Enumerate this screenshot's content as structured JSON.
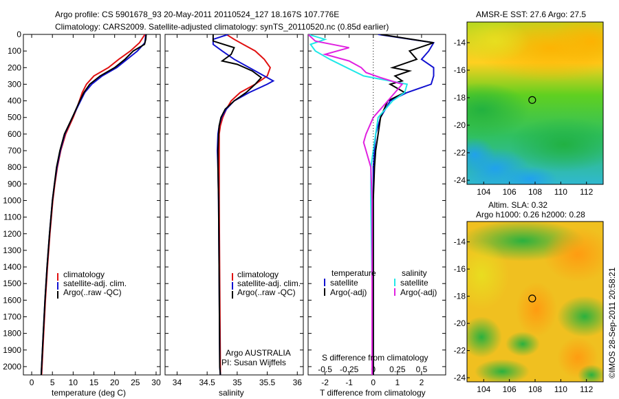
{
  "header": {
    "line1": "Argo profile: CS 5901678_93 20-May-2011 20110524_127 18.167S 107.776E",
    "line2": "Climatology: CARS2009. Satellite-adjusted climatology: synTS_20110520.nc (0.85d earlier)"
  },
  "colors": {
    "climatology": "#e01010",
    "satellite": "#1010d0",
    "argo": "#000000",
    "argo_salt": "#e020e0",
    "sat_salt": "#20e8e8"
  },
  "panels": {
    "temperature": {
      "xlabel": "temperature (deg C)",
      "legend": [
        "climatology",
        "satellite-adj. clim.",
        "Argo(..raw -QC)"
      ]
    },
    "salinity": {
      "xlabel": "salinity",
      "legend": [
        "climatology",
        "satellite-adj. clim.",
        "Argo(..raw -QC)"
      ],
      "note1": "Argo AUSTRALIA",
      "note2": "PI: Susan Wijffels"
    },
    "difference": {
      "legend_temp_title": "temperature",
      "legend_temp": [
        "satellite",
        "Argo(-adj)"
      ],
      "legend_salt_title": "salinity",
      "legend_salt": [
        "satellite",
        "Argo(-adj)"
      ],
      "top_label": "S difference from climatology",
      "xlabel": "T difference from climatology"
    }
  },
  "maps": {
    "sst_title": "AMSR-E SST: 27.6  Argo: 27.5",
    "sla_title1": "Altim. SLA: 0.32",
    "sla_title2": "Argo h1000: 0.26  h2000: 0.28",
    "sidebar": "©IMOS 28-Sep-2011 20:58:21",
    "argo_lon": 107.776,
    "argo_lat": -18.167
  },
  "chart_data": [
    {
      "type": "line",
      "title": "",
      "xlabel": "temperature (deg C)",
      "ylabel": "",
      "xlim": [
        -2,
        31
      ],
      "ylim": [
        2050,
        0
      ],
      "xticks": [
        0,
        5,
        10,
        15,
        20,
        25,
        30
      ],
      "yticks": [
        0,
        100,
        200,
        300,
        400,
        500,
        600,
        700,
        800,
        900,
        1000,
        1100,
        1200,
        1300,
        1400,
        1500,
        1600,
        1700,
        1800,
        1900,
        2000
      ],
      "series": [
        {
          "name": "climatology",
          "color_key": "climatology",
          "depth": [
            0,
            50,
            100,
            150,
            200,
            250,
            300,
            350,
            400,
            450,
            500,
            600,
            700,
            800,
            900,
            1000,
            1200,
            1400,
            1600,
            1800,
            2000,
            2050
          ],
          "x": [
            27.3,
            26.0,
            23.8,
            21.0,
            18.5,
            15.0,
            13.2,
            12.2,
            11.5,
            10.8,
            10.0,
            8.2,
            7.0,
            6.2,
            5.6,
            5.1,
            4.4,
            3.8,
            3.3,
            2.9,
            2.5,
            2.4
          ]
        },
        {
          "name": "satellite-adj. clim.",
          "color_key": "satellite",
          "depth": [
            0,
            50,
            100,
            150,
            200,
            250,
            300,
            350,
            400,
            450,
            500,
            600,
            700,
            800,
            900,
            1000,
            1200,
            1400,
            1600,
            1800,
            2000,
            2050
          ],
          "x": [
            27.5,
            27.3,
            25.5,
            23.0,
            20.5,
            17.0,
            14.5,
            12.8,
            11.8,
            10.8,
            9.8,
            8.0,
            6.9,
            6.1,
            5.5,
            5.0,
            4.3,
            3.7,
            3.2,
            2.8,
            2.4,
            2.3
          ]
        },
        {
          "name": "Argo(..raw -QC)",
          "color_key": "argo",
          "depth": [
            0,
            30,
            60,
            100,
            150,
            200,
            250,
            300,
            350,
            400,
            500,
            600,
            700,
            800,
            900,
            1000,
            1200,
            1400,
            1600,
            1800,
            2000,
            2050
          ],
          "x": [
            27.6,
            27.5,
            27.2,
            24.5,
            22.5,
            20.0,
            16.5,
            14.0,
            12.6,
            11.6,
            9.8,
            7.9,
            6.8,
            6.0,
            5.5,
            5.0,
            4.3,
            3.7,
            3.2,
            2.8,
            2.4,
            2.3
          ]
        }
      ]
    },
    {
      "type": "line",
      "title": "",
      "xlabel": "salinity",
      "ylabel": "",
      "xlim": [
        33.8,
        36.1
      ],
      "ylim": [
        2050,
        0
      ],
      "xticks": [
        34,
        34.5,
        35,
        35.5,
        36
      ],
      "series": [
        {
          "name": "climatology",
          "color_key": "climatology",
          "depth": [
            0,
            30,
            60,
            100,
            150,
            200,
            250,
            300,
            350,
            400,
            450,
            500,
            550,
            600,
            700,
            800,
            1000,
            1500,
            2000,
            2050
          ],
          "x": [
            34.82,
            34.95,
            35.1,
            35.3,
            35.45,
            35.55,
            35.5,
            35.3,
            35.05,
            34.9,
            34.82,
            34.76,
            34.72,
            34.7,
            34.7,
            34.7,
            34.7,
            34.71,
            34.72,
            34.72
          ]
        },
        {
          "name": "satellite-adj. clim.",
          "color_key": "satellite",
          "depth": [
            0,
            30,
            60,
            100,
            150,
            200,
            250,
            280,
            300,
            350,
            400,
            450,
            500,
            550,
            600,
            700,
            800,
            1000,
            1500,
            2000,
            2050
          ],
          "x": [
            34.85,
            34.6,
            34.6,
            34.75,
            34.95,
            35.2,
            35.45,
            35.6,
            35.5,
            35.2,
            34.95,
            34.82,
            34.74,
            34.7,
            34.68,
            34.67,
            34.68,
            34.69,
            34.7,
            34.71,
            34.72
          ]
        },
        {
          "name": "Argo(..raw -QC)",
          "color_key": "argo",
          "depth": [
            0,
            40,
            80,
            120,
            160,
            180,
            220,
            260,
            300,
            350,
            400,
            450,
            500,
            550,
            600,
            700,
            800,
            1000,
            1500,
            2000,
            2050
          ],
          "x": [
            34.6,
            34.6,
            34.95,
            34.9,
            34.75,
            35.0,
            35.25,
            35.4,
            35.3,
            35.15,
            34.95,
            34.8,
            34.73,
            34.7,
            34.69,
            34.68,
            34.68,
            34.69,
            34.7,
            34.71,
            34.72
          ]
        }
      ]
    },
    {
      "type": "line",
      "title": "",
      "top_label": "S difference from climatology",
      "xlabel": "T difference from climatology",
      "xlim": [
        -2.7,
        3.0
      ],
      "ylim": [
        2050,
        0
      ],
      "xticks": [
        -2,
        -1,
        0,
        1,
        2
      ],
      "top_ticks": [
        "-0.5",
        "-0.25",
        "0",
        "0.25",
        "0.5"
      ],
      "series": [
        {
          "name": "temperature satellite",
          "color_key": "satellite",
          "depth": [
            0,
            50,
            100,
            150,
            200,
            250,
            300,
            350,
            400,
            500,
            600,
            700,
            800,
            1000,
            1500,
            2000,
            2050
          ],
          "x": [
            0.2,
            2.5,
            2.3,
            2.0,
            2.5,
            2.5,
            2.4,
            1.4,
            0.7,
            0.3,
            0.1,
            0.05,
            0.0,
            0.0,
            0.0,
            0.0,
            0.0
          ]
        },
        {
          "name": "temperature Argo(-adj)",
          "color_key": "argo",
          "depth": [
            0,
            50,
            100,
            150,
            200,
            220,
            250,
            280,
            300,
            350,
            400,
            500,
            600,
            700,
            800,
            1000,
            1500,
            2000,
            2050
          ],
          "x": [
            0.3,
            2.5,
            1.5,
            1.8,
            0.8,
            1.5,
            0.9,
            1.2,
            0.7,
            1.3,
            0.6,
            0.3,
            0.2,
            0.1,
            0.05,
            0.0,
            0.0,
            0.0,
            0.0
          ]
        },
        {
          "name": "salinity satellite",
          "color_key": "sat_salt",
          "depth": [
            0,
            30,
            60,
            100,
            150,
            200,
            250,
            300,
            350,
            400,
            500,
            600,
            700,
            800,
            1000,
            1500,
            2000,
            2050
          ],
          "x": [
            -2.7,
            -2.0,
            -2.6,
            -2.4,
            -1.8,
            -1.1,
            -0.4,
            1.4,
            1.3,
            0.8,
            0.2,
            0.1,
            0.0,
            -0.1,
            -0.1,
            -0.05,
            -0.05,
            -0.05
          ]
        },
        {
          "name": "salinity Argo(-adj)",
          "color_key": "argo_salt",
          "depth": [
            0,
            40,
            80,
            120,
            160,
            200,
            230,
            260,
            300,
            350,
            400,
            500,
            600,
            650,
            700,
            750,
            800,
            1000,
            1500,
            2000,
            2050
          ],
          "x": [
            -2.7,
            -2.4,
            -1.0,
            -2.0,
            -1.0,
            -0.5,
            -0.3,
            0.3,
            1.2,
            0.9,
            0.6,
            0.0,
            -0.3,
            -0.4,
            -0.3,
            -0.2,
            -0.1,
            -0.05,
            -0.05,
            -0.05,
            -0.05
          ]
        }
      ]
    },
    {
      "type": "heatmap",
      "title": "AMSR-E SST: 27.6  Argo: 27.5",
      "xlim": [
        102.7,
        113.3
      ],
      "ylim": [
        -24.3,
        -12.5
      ],
      "xticks": [
        104,
        106,
        108,
        110,
        112
      ],
      "yticks": [
        -14,
        -16,
        -18,
        -20,
        -22,
        -24
      ],
      "marker": {
        "lon": 107.776,
        "lat": -18.167
      }
    },
    {
      "type": "heatmap",
      "title": "Altim. SLA: 0.32",
      "xlim": [
        102.7,
        113.3
      ],
      "ylim": [
        -24.3,
        -12.5
      ],
      "xticks": [
        104,
        106,
        108,
        110,
        112
      ],
      "yticks": [
        -14,
        -16,
        -18,
        -20,
        -22,
        -24
      ],
      "marker": {
        "lon": 107.776,
        "lat": -18.167
      }
    }
  ]
}
